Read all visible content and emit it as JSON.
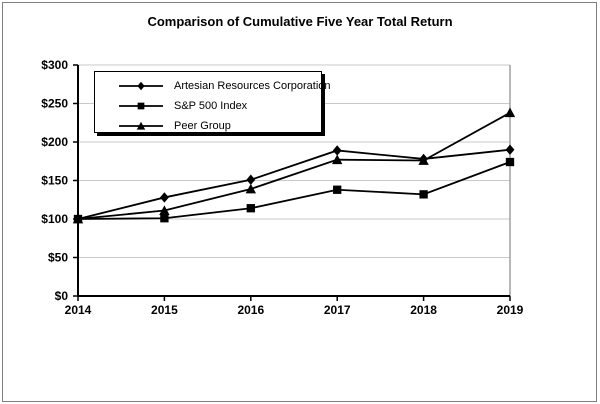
{
  "chart_data": {
    "type": "line",
    "title": "Comparison of Cumulative Five Year Total Return",
    "x_categories": [
      "2014",
      "2015",
      "2016",
      "2017",
      "2018",
      "2019"
    ],
    "y_ticks": [
      "$0",
      "$50",
      "$100",
      "$150",
      "$200",
      "$250",
      "$300"
    ],
    "ylim": [
      0,
      300
    ],
    "xlabel": "",
    "ylabel": "",
    "grid": true,
    "legend_position": "top-left-inside",
    "colors": {
      "line": "#000000",
      "gridline": "#c9c9c9",
      "axis": "#000000",
      "plot_right_border": "#a0a0a0",
      "background": "#ffffff"
    },
    "series": [
      {
        "name": "Artesian Resources Corporation",
        "marker": "diamond",
        "color": "#000000",
        "values": [
          100,
          128,
          151,
          189,
          178,
          190
        ]
      },
      {
        "name": "S&P 500 Index",
        "marker": "square",
        "color": "#000000",
        "values": [
          100,
          101,
          114,
          138,
          132,
          174
        ]
      },
      {
        "name": "Peer Group",
        "marker": "triangle",
        "color": "#000000",
        "values": [
          100,
          111,
          139,
          177,
          176,
          238
        ]
      }
    ]
  }
}
